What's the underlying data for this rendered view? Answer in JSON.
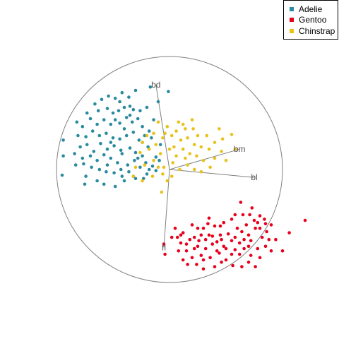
{
  "chart_data": {
    "type": "scatter",
    "title": "",
    "xlabel": "",
    "ylabel": "",
    "grid": false,
    "legend_position": "top-right",
    "xlim": [
      -1.2,
      1.2
    ],
    "ylim": [
      -1.2,
      1.2
    ],
    "unit_circle": true,
    "axes": [
      {
        "name": "bd",
        "x": -0.12,
        "y": 0.75
      },
      {
        "name": "bm",
        "x": 0.62,
        "y": 0.18
      },
      {
        "name": "bl",
        "x": 0.75,
        "y": -0.07
      },
      {
        "name": "fl",
        "x": -0.05,
        "y": -0.69
      }
    ],
    "series": [
      {
        "name": "Adelie",
        "color": "#2A8A9F",
        "points": [
          [
            -0.66,
            0.58
          ],
          [
            -0.6,
            0.62
          ],
          [
            -0.54,
            0.65
          ],
          [
            -0.48,
            0.63
          ],
          [
            -0.42,
            0.68
          ],
          [
            -0.36,
            0.64
          ],
          [
            -0.3,
            0.7
          ],
          [
            -0.17,
            0.73
          ],
          [
            -0.01,
            0.69
          ],
          [
            -0.73,
            0.5
          ],
          [
            -0.63,
            0.52
          ],
          [
            -0.55,
            0.54
          ],
          [
            -0.5,
            0.5
          ],
          [
            -0.45,
            0.52
          ],
          [
            -0.4,
            0.55
          ],
          [
            -0.35,
            0.56
          ],
          [
            -0.32,
            0.53
          ],
          [
            -0.26,
            0.52
          ],
          [
            -0.2,
            0.55
          ],
          [
            -0.1,
            0.6
          ],
          [
            -0.77,
            0.38
          ],
          [
            -0.7,
            0.45
          ],
          [
            -0.64,
            0.4
          ],
          [
            -0.58,
            0.44
          ],
          [
            -0.52,
            0.4
          ],
          [
            -0.48,
            0.44
          ],
          [
            -0.44,
            0.41
          ],
          [
            -0.4,
            0.36
          ],
          [
            -0.38,
            0.46
          ],
          [
            -0.33,
            0.42
          ],
          [
            -0.28,
            0.45
          ],
          [
            -0.24,
            0.38
          ],
          [
            -0.18,
            0.34
          ],
          [
            -0.14,
            0.44
          ],
          [
            -0.94,
            0.26
          ],
          [
            -0.81,
            0.3
          ],
          [
            -0.74,
            0.29
          ],
          [
            -0.68,
            0.34
          ],
          [
            -0.62,
            0.3
          ],
          [
            -0.56,
            0.32
          ],
          [
            -0.5,
            0.28
          ],
          [
            -0.44,
            0.27
          ],
          [
            -0.38,
            0.3
          ],
          [
            -0.32,
            0.33
          ],
          [
            -0.27,
            0.26
          ],
          [
            -0.22,
            0.3
          ],
          [
            -0.16,
            0.28
          ],
          [
            -0.08,
            0.22
          ],
          [
            -0.79,
            0.2
          ],
          [
            -0.73,
            0.22
          ],
          [
            -0.67,
            0.16
          ],
          [
            -0.61,
            0.23
          ],
          [
            -0.55,
            0.18
          ],
          [
            -0.49,
            0.21
          ],
          [
            -0.43,
            0.17
          ],
          [
            -0.35,
            0.19
          ],
          [
            -0.3,
            0.15
          ],
          [
            -0.24,
            0.12
          ],
          [
            -0.19,
            0.2
          ],
          [
            -0.12,
            0.11
          ],
          [
            -0.94,
            0.12
          ],
          [
            -0.84,
            0.14
          ],
          [
            -0.77,
            0.1
          ],
          [
            -0.7,
            0.12
          ],
          [
            -0.64,
            0.08
          ],
          [
            -0.58,
            0.13
          ],
          [
            -0.52,
            0.1
          ],
          [
            -0.46,
            0.06
          ],
          [
            -0.42,
            0.14
          ],
          [
            -0.37,
            0.04
          ],
          [
            -0.31,
            0.08
          ],
          [
            -0.26,
            0.02
          ],
          [
            -0.21,
            0.06
          ],
          [
            -0.15,
            0.03
          ],
          [
            -0.09,
            0.08
          ],
          [
            -0.83,
            0.04
          ],
          [
            -0.76,
            0.05
          ],
          [
            -0.69,
            0.02
          ],
          [
            -0.62,
            0.0
          ],
          [
            -0.55,
            0.04
          ],
          [
            -0.49,
            -0.03
          ],
          [
            -0.43,
            0.0
          ],
          [
            -0.36,
            -0.02
          ],
          [
            -0.32,
            -0.06
          ],
          [
            -0.2,
            -0.04
          ],
          [
            -0.12,
            -0.01
          ],
          [
            -0.74,
            -0.06
          ],
          [
            -0.64,
            -0.1
          ],
          [
            -0.56,
            -0.02
          ],
          [
            -0.42,
            -0.06
          ],
          [
            -0.3,
            -0.08
          ],
          [
            -0.23,
            -0.08
          ],
          [
            -0.95,
            -0.05
          ],
          [
            -0.58,
            -0.13
          ],
          [
            -0.4,
            -0.1
          ],
          [
            -0.48,
            -0.15
          ],
          [
            -0.75,
            -0.13
          ],
          [
            -0.18,
            0.0
          ],
          [
            -0.28,
            0.1
          ],
          [
            -0.35,
            0.48
          ],
          [
            -0.24,
            0.24
          ],
          [
            -0.44,
            0.6
          ],
          [
            -0.52,
            0.24
          ],
          [
            -0.82,
            0.42
          ]
        ]
      },
      {
        "name": "Gentoo",
        "color": "#E8001C",
        "points": [
          [
            0.63,
            -0.29
          ],
          [
            0.73,
            -0.34
          ],
          [
            0.71,
            -0.4
          ],
          [
            0.8,
            -0.41
          ],
          [
            0.9,
            -0.49
          ],
          [
            0.75,
            -0.45
          ],
          [
            0.65,
            -0.4
          ],
          [
            0.55,
            -0.44
          ],
          [
            0.48,
            -0.47
          ],
          [
            0.4,
            -0.5
          ],
          [
            0.35,
            -0.43
          ],
          [
            0.3,
            -0.52
          ],
          [
            0.2,
            -0.49
          ],
          [
            0.12,
            -0.56
          ],
          [
            0.05,
            -0.52
          ],
          [
            0.02,
            -0.6
          ],
          [
            0.22,
            -0.6
          ],
          [
            0.28,
            -0.58
          ],
          [
            0.38,
            -0.59
          ],
          [
            0.46,
            -0.62
          ],
          [
            0.52,
            -0.57
          ],
          [
            0.58,
            -0.6
          ],
          [
            0.64,
            -0.55
          ],
          [
            0.7,
            -0.58
          ],
          [
            0.76,
            -0.52
          ],
          [
            0.82,
            -0.6
          ],
          [
            0.86,
            -0.55
          ],
          [
            0.94,
            -0.62
          ],
          [
            1.06,
            -0.56
          ],
          [
            1.2,
            -0.45
          ],
          [
            0.72,
            -0.63
          ],
          [
            0.62,
            -0.65
          ],
          [
            0.55,
            -0.63
          ],
          [
            0.48,
            -0.68
          ],
          [
            0.42,
            -0.72
          ],
          [
            0.32,
            -0.7
          ],
          [
            0.25,
            -0.68
          ],
          [
            0.18,
            -0.62
          ],
          [
            0.1,
            -0.65
          ],
          [
            0.15,
            -0.72
          ],
          [
            0.22,
            -0.7
          ],
          [
            0.28,
            -0.76
          ],
          [
            0.36,
            -0.78
          ],
          [
            0.44,
            -0.74
          ],
          [
            0.5,
            -0.8
          ],
          [
            0.58,
            -0.71
          ],
          [
            0.66,
            -0.7
          ],
          [
            0.78,
            -0.7
          ],
          [
            0.85,
            -0.68
          ],
          [
            0.9,
            -0.72
          ],
          [
            1.0,
            -0.72
          ],
          [
            0.08,
            -0.72
          ],
          [
            0.12,
            -0.8
          ],
          [
            0.16,
            -0.84
          ],
          [
            0.24,
            -0.84
          ],
          [
            0.3,
            -0.8
          ],
          [
            0.4,
            -0.86
          ],
          [
            0.46,
            -0.82
          ],
          [
            0.56,
            -0.85
          ],
          [
            0.64,
            -0.86
          ],
          [
            0.7,
            -0.82
          ],
          [
            0.76,
            -0.86
          ],
          [
            0.35,
            -0.58
          ],
          [
            0.45,
            -0.58
          ],
          [
            0.6,
            -0.52
          ],
          [
            0.68,
            -0.49
          ],
          [
            0.78,
            -0.47
          ],
          [
            0.84,
            -0.44
          ],
          [
            0.88,
            -0.62
          ],
          [
            0.7,
            -0.68
          ],
          [
            0.26,
            -0.63
          ],
          [
            0.2,
            -0.78
          ],
          [
            0.42,
            -0.64
          ],
          [
            0.5,
            -0.7
          ],
          [
            0.32,
            -0.62
          ],
          [
            0.38,
            -0.66
          ],
          [
            0.62,
            -0.75
          ],
          [
            0.55,
            -0.75
          ],
          [
            0.72,
            -0.76
          ],
          [
            0.8,
            -0.78
          ],
          [
            0.15,
            -0.66
          ],
          [
            0.07,
            -0.6
          ],
          [
            -0.04,
            -0.75
          ],
          [
            -0.05,
            -0.66
          ],
          [
            0.25,
            -0.52
          ],
          [
            0.34,
            -0.48
          ],
          [
            0.58,
            -0.4
          ],
          [
            0.85,
            -0.48
          ],
          [
            0.8,
            -0.52
          ],
          [
            0.66,
            -0.62
          ],
          [
            0.45,
            -0.5
          ],
          [
            0.3,
            -0.88
          ],
          [
            0.1,
            -0.58
          ]
        ]
      },
      {
        "name": "Chinstrap",
        "color": "#E8C21B",
        "points": [
          [
            -0.1,
            0.42
          ],
          [
            -0.02,
            0.38
          ],
          [
            0.08,
            0.42
          ],
          [
            0.14,
            0.36
          ],
          [
            0.21,
            0.36
          ],
          [
            0.44,
            0.36
          ],
          [
            0.25,
            0.3
          ],
          [
            0.33,
            0.3
          ],
          [
            0.47,
            0.27
          ],
          [
            0.55,
            0.31
          ],
          [
            0.4,
            0.24
          ],
          [
            -0.2,
            0.3
          ],
          [
            -0.14,
            0.32
          ],
          [
            -0.06,
            0.28
          ],
          [
            0.02,
            0.3
          ],
          [
            0.1,
            0.26
          ],
          [
            0.16,
            0.28
          ],
          [
            0.22,
            0.22
          ],
          [
            0.28,
            0.2
          ],
          [
            0.35,
            0.18
          ],
          [
            0.46,
            0.16
          ],
          [
            0.58,
            0.18
          ],
          [
            -0.26,
            0.15
          ],
          [
            -0.18,
            0.18
          ],
          [
            -0.08,
            0.14
          ],
          [
            0.0,
            0.18
          ],
          [
            0.06,
            0.12
          ],
          [
            0.12,
            0.18
          ],
          [
            0.18,
            0.14
          ],
          [
            0.24,
            0.12
          ],
          [
            0.3,
            0.08
          ],
          [
            0.4,
            0.1
          ],
          [
            0.5,
            0.08
          ],
          [
            0.36,
            0.02
          ],
          [
            -0.3,
            0.02
          ],
          [
            -0.22,
            0.04
          ],
          [
            -0.14,
            0.08
          ],
          [
            -0.05,
            0.02
          ],
          [
            0.03,
            0.06
          ],
          [
            0.09,
            0.0
          ],
          [
            0.16,
            0.04
          ],
          [
            0.22,
            0.0
          ],
          [
            0.28,
            -0.02
          ],
          [
            -0.32,
            -0.06
          ],
          [
            -0.24,
            -0.1
          ],
          [
            -0.15,
            -0.06
          ],
          [
            -0.06,
            -0.04
          ],
          [
            0.02,
            -0.06
          ],
          [
            -0.24,
            0.24
          ],
          [
            -0.12,
            0.22
          ],
          [
            -0.04,
            0.32
          ],
          [
            0.06,
            0.34
          ],
          [
            0.12,
            0.4
          ],
          [
            0.2,
            0.44
          ],
          [
            0.04,
            0.2
          ],
          [
            -0.1,
            0.02
          ],
          [
            -0.07,
            -0.2
          ],
          [
            -0.02,
            -0.1
          ],
          [
            0.14,
            0.1
          ]
        ]
      }
    ]
  }
}
